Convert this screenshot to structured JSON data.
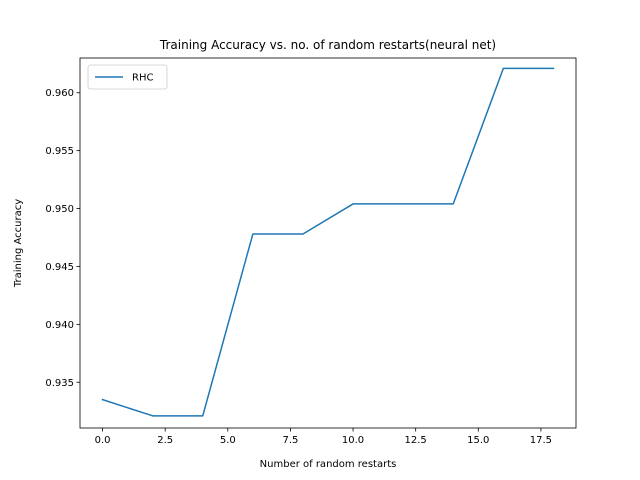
{
  "chart_data": {
    "type": "line",
    "title": "Training Accuracy vs.  no. of random restarts(neural net)",
    "xlabel": "Number of random restarts",
    "ylabel": "Training Accuracy",
    "xlim": [
      -0.9,
      18.9
    ],
    "ylim": [
      0.93105,
      0.963
    ],
    "x_ticks": [
      0.0,
      2.5,
      5.0,
      7.5,
      10.0,
      12.5,
      15.0,
      17.5
    ],
    "x_tick_labels": [
      "0.0",
      "2.5",
      "5.0",
      "7.5",
      "10.0",
      "12.5",
      "15.0",
      "17.5"
    ],
    "y_ticks": [
      0.935,
      0.94,
      0.945,
      0.95,
      0.955,
      0.96
    ],
    "y_tick_labels": [
      "0.935",
      "0.940",
      "0.945",
      "0.950",
      "0.955",
      "0.960"
    ],
    "grid": false,
    "legend_position": "top-left",
    "series": [
      {
        "name": "RHC",
        "color": "#1f77b4",
        "x": [
          0,
          2,
          4,
          6,
          8,
          10,
          12,
          14,
          16,
          18
        ],
        "y": [
          0.9335,
          0.9321,
          0.9321,
          0.9478,
          0.9478,
          0.9504,
          0.9504,
          0.9504,
          0.9621,
          0.9621
        ]
      }
    ]
  }
}
